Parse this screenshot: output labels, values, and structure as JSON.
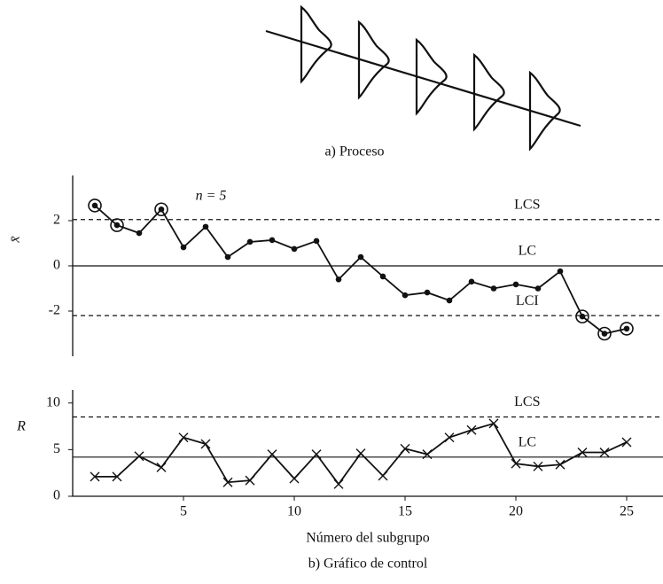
{
  "diagram": {
    "caption": "a) Proceso"
  },
  "figure_caption": "b) Gráfico de control",
  "chart_data": [
    {
      "type": "line",
      "y_label": "x̄",
      "annotation": "n = 5",
      "color": "#111111",
      "x": [
        1,
        2,
        3,
        4,
        5,
        6,
        7,
        8,
        9,
        10,
        11,
        12,
        13,
        14,
        15,
        16,
        17,
        18,
        19,
        20,
        21,
        22,
        23,
        24,
        25
      ],
      "values": [
        2.67,
        1.8,
        1.45,
        2.5,
        0.82,
        1.73,
        0.39,
        1.06,
        1.14,
        0.75,
        1.1,
        -0.6,
        0.39,
        -0.47,
        -1.3,
        -1.18,
        -1.53,
        -0.7,
        -1.0,
        -0.82,
        -1.0,
        -0.24,
        -2.24,
        -3.0,
        -2.78
      ],
      "circled": [
        true,
        true,
        false,
        true,
        false,
        false,
        false,
        false,
        false,
        false,
        false,
        false,
        false,
        false,
        false,
        false,
        false,
        false,
        false,
        false,
        false,
        false,
        true,
        true,
        true
      ],
      "marker": "dot",
      "xlim": [
        0,
        26.64
      ],
      "ylim": [
        -4,
        4
      ],
      "yticks": [
        -2,
        0,
        2
      ],
      "reference_lines": [
        {
          "label": "LCS",
          "value": 2.05,
          "style": "dashed"
        },
        {
          "label": "LC",
          "value": 0,
          "style": "solid"
        },
        {
          "label": "LCI",
          "value": -2.2,
          "style": "dashed"
        }
      ]
    },
    {
      "type": "line",
      "y_label": "R",
      "x_label": "Número del subgrupo",
      "color": "#111111",
      "x": [
        1,
        2,
        3,
        4,
        5,
        6,
        7,
        8,
        9,
        10,
        11,
        12,
        13,
        14,
        15,
        16,
        17,
        18,
        19,
        20,
        21,
        22,
        23,
        24,
        25
      ],
      "values": [
        2.1,
        2.1,
        4.3,
        3.1,
        6.3,
        5.6,
        1.5,
        1.7,
        4.5,
        1.9,
        4.5,
        1.3,
        4.6,
        2.2,
        5.1,
        4.5,
        6.3,
        7.1,
        7.8,
        3.5,
        3.2,
        3.4,
        4.7,
        4.7,
        5.8
      ],
      "marker": "cross",
      "xlim": [
        0,
        26.64
      ],
      "ylim": [
        0,
        11.4
      ],
      "yticks": [
        0,
        5,
        10
      ],
      "xticks": [
        5,
        10,
        15,
        20,
        25
      ],
      "reference_lines": [
        {
          "label": "LCS",
          "value": 8.5,
          "style": "dashed"
        },
        {
          "label": "LC",
          "value": 4.2,
          "style": "solid"
        }
      ]
    }
  ]
}
